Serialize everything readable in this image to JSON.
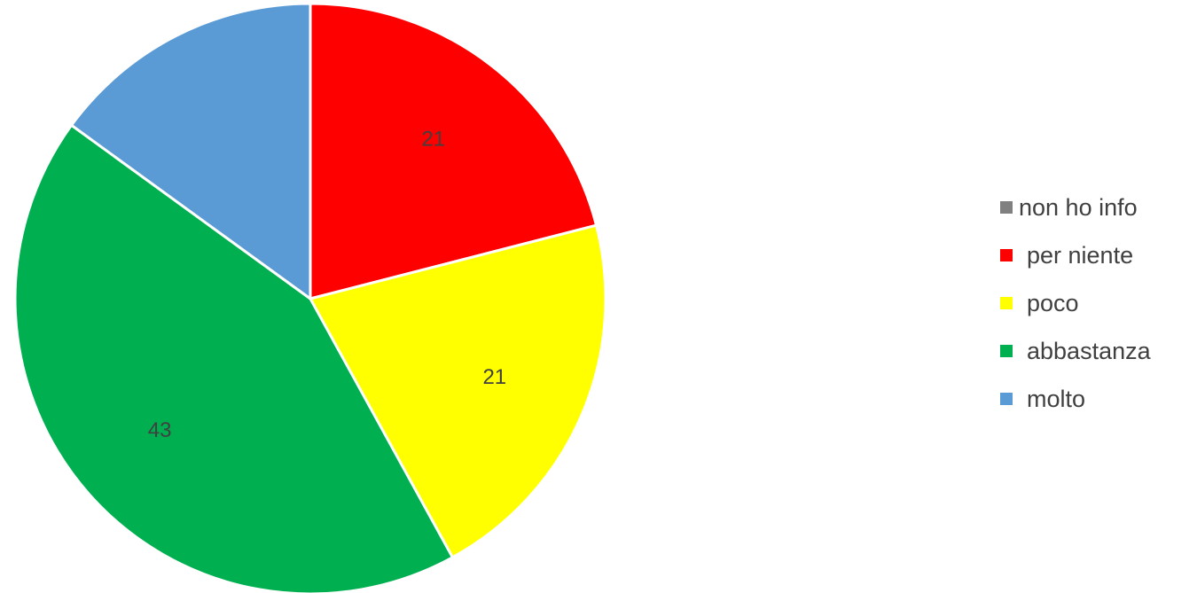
{
  "chart_data": {
    "type": "pie",
    "categories": [
      "non ho info",
      "per niente",
      "poco",
      "abbastanza",
      "molto"
    ],
    "values": [
      0,
      21,
      21,
      43,
      15
    ],
    "data_labels": [
      "",
      "21",
      "21",
      "43",
      ""
    ],
    "colors": [
      "#808080",
      "#ff0000",
      "#ffff00",
      "#00b050",
      "#5b9bd5"
    ],
    "start_angle_deg": 0,
    "direction": "clockwise",
    "slice_border_color": "#ffffff",
    "legend_position": "right"
  }
}
